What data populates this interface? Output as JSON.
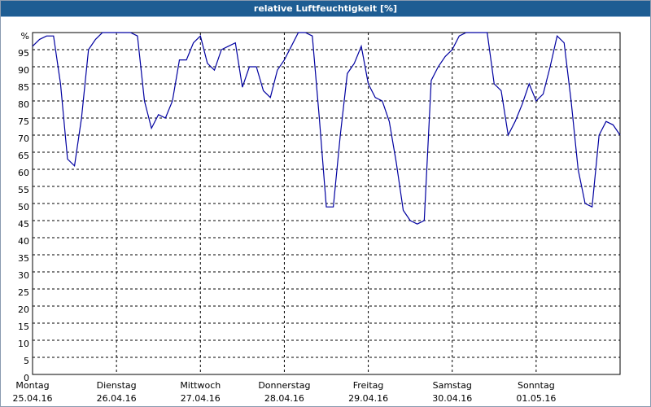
{
  "chart_data": {
    "type": "line",
    "title": "relative Luftfeuchtigkeit [%]",
    "x": [
      0,
      2,
      4,
      6,
      8,
      10,
      12,
      14,
      16,
      18,
      20,
      22,
      24,
      26,
      28,
      30,
      32,
      34,
      36,
      38,
      40,
      42,
      44,
      46,
      48,
      50,
      52,
      54,
      56,
      58,
      60,
      62,
      64,
      66,
      68,
      70,
      72,
      74,
      76,
      78,
      80,
      82,
      84,
      86,
      88,
      90,
      92,
      94,
      96,
      98,
      100,
      102,
      104,
      106,
      108,
      110,
      112,
      114,
      116,
      118,
      120,
      122,
      124,
      126,
      128,
      130,
      132,
      134,
      136,
      138,
      140,
      142,
      144,
      146,
      148,
      150,
      152,
      154,
      156,
      158,
      160,
      162,
      164,
      166,
      168
    ],
    "series": [
      {
        "name": "relative Luftfeuchtigkeit",
        "color": "#0000a0",
        "values": [
          96,
          98,
          99,
          99,
          85,
          63,
          61,
          75,
          95,
          98,
          100,
          100,
          100,
          100,
          100,
          99,
          80,
          72,
          76,
          75,
          80,
          92,
          92,
          97,
          99,
          91,
          89,
          95,
          96,
          97,
          84,
          90,
          90,
          83,
          81,
          89,
          92,
          96,
          100,
          100,
          99,
          75,
          49,
          49,
          70,
          88,
          91,
          96,
          85,
          81,
          80,
          74,
          62,
          48,
          45,
          44,
          45,
          86,
          90,
          93,
          95,
          99,
          100,
          100,
          100,
          100,
          85,
          83,
          70,
          74,
          79,
          85,
          80,
          82,
          90,
          99,
          97,
          80,
          60,
          50,
          49,
          70,
          74,
          73,
          70
        ]
      }
    ],
    "xlim": [
      0,
      168
    ],
    "xticks": [
      {
        "value": 0,
        "label": "Montag"
      },
      {
        "value": 24,
        "label": "Dienstag"
      },
      {
        "value": 48,
        "label": "Mittwoch"
      },
      {
        "value": 72,
        "label": "Donnerstag"
      },
      {
        "value": 96,
        "label": "Freitag"
      },
      {
        "value": 120,
        "label": "Samstag"
      },
      {
        "value": 144,
        "label": "Sonntag"
      }
    ],
    "xtick_dates": [
      "25.04.16",
      "26.04.16",
      "27.04.16",
      "28.04.16",
      "29.04.16",
      "30.04.16",
      "01.05.16"
    ],
    "ylim": [
      0,
      100
    ],
    "yticks": [
      0,
      5,
      10,
      15,
      20,
      25,
      30,
      35,
      40,
      45,
      50,
      55,
      60,
      65,
      70,
      75,
      80,
      85,
      90,
      95,
      {
        "value": 100,
        "label": "%"
      }
    ],
    "grid": true
  }
}
